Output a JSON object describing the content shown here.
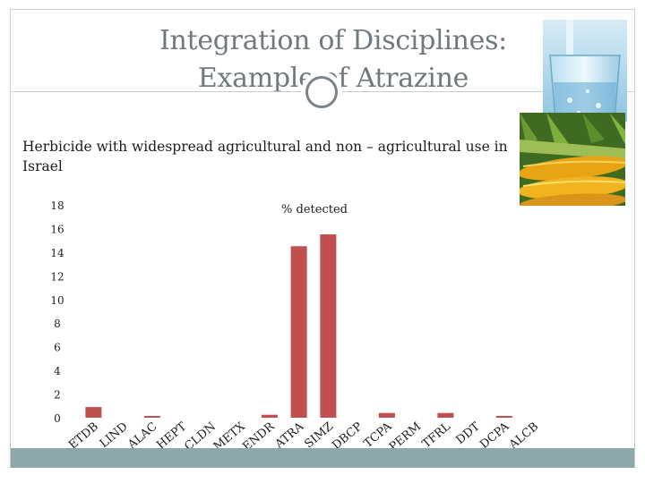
{
  "slide": {
    "title_line1": "Integration of Disciplines:",
    "title_line2": "Example of Atrazine",
    "subtitle": "Herbicide with widespread agricultural and non – agricultural use in Israel"
  },
  "images": {
    "top_right": "glass-of-water-photo",
    "middle_right": "corn-cobs-photo"
  },
  "colors": {
    "bar": "#c0504d",
    "title": "#6f7a80",
    "footer": "#8fa6ab"
  },
  "chart_data": {
    "type": "bar",
    "title": "% detected",
    "xlabel": "",
    "ylabel": "",
    "ylim": [
      0,
      18
    ],
    "yticks": [
      0,
      2,
      4,
      6,
      8,
      10,
      12,
      14,
      16,
      18
    ],
    "grid": false,
    "legend": "none",
    "categories": [
      "ETDB",
      "LIND",
      "ALAC",
      "HEPT",
      "CLDN",
      "METX",
      "ENDR",
      "ATRA",
      "SIMZ",
      "DBCP",
      "TCPA",
      "PERM",
      "TFRL",
      "DDT",
      "DCPA",
      "ALCB"
    ],
    "values": [
      0.9,
      0,
      0.15,
      0,
      0,
      0,
      0.25,
      14.5,
      15.5,
      0,
      0.4,
      0,
      0.4,
      0,
      0.15,
      0
    ]
  }
}
